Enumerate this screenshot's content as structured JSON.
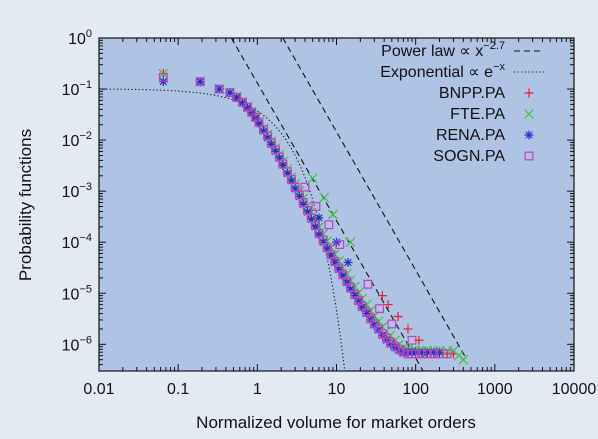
{
  "chart_data": {
    "type": "scatter",
    "title": "",
    "xlabel": "Normalized volume for market orders",
    "ylabel": "Probability functions",
    "xscale": "log",
    "yscale": "log",
    "xlim": [
      0.01,
      10000
    ],
    "ylim": [
      3e-07,
      1
    ],
    "x_ticks": [
      "0.01",
      "0.1",
      "1",
      "10",
      "100",
      "1000",
      "10000"
    ],
    "y_ticks": [
      {
        "base": "10",
        "exp": "0"
      },
      {
        "base": "10",
        "exp": "−1"
      },
      {
        "base": "10",
        "exp": "−2"
      },
      {
        "base": "10",
        "exp": "−3"
      },
      {
        "base": "10",
        "exp": "−4"
      },
      {
        "base": "10",
        "exp": "−5"
      },
      {
        "base": "10",
        "exp": "−6"
      }
    ],
    "grid": false,
    "legend_position": "top-right",
    "legend": [
      {
        "label": "Power law ∝ x",
        "sup": "−2.7",
        "style": "dashed",
        "color": "#111111"
      },
      {
        "label": "Exponential ∝ e",
        "sup": "−x",
        "style": "dotted",
        "color": "#111111"
      },
      {
        "label": "BNPP.PA",
        "marker": "plus",
        "color": "#e8202a"
      },
      {
        "label": "FTE.PA",
        "marker": "cross",
        "color": "#3cc23c"
      },
      {
        "label": "RENA.PA",
        "marker": "asterisk",
        "color": "#2030c8"
      },
      {
        "label": "SOGN.PA",
        "marker": "square",
        "color": "#c040c0"
      }
    ],
    "reference_lines": [
      {
        "name": "Power law ∝ x−2.7",
        "style": "dashed",
        "x": [
          0.47,
          150
        ],
        "y": [
          1.0,
          1.8e-07
        ]
      },
      {
        "name": "Power law ∝ x−2.7",
        "style": "dashed",
        "x": [
          2.1,
          420
        ],
        "y": [
          1.0,
          5.8e-07
        ]
      },
      {
        "name": "Exponential ∝ e−x",
        "style": "dotted",
        "x": [
          0.01,
          13
        ],
        "y": [
          0.1,
          2.3e-07
        ]
      }
    ],
    "series": [
      {
        "name": "BNPP.PA",
        "marker": "plus",
        "color": "#e8202a",
        "x": [
          0.065,
          0.19,
          0.33,
          0.45,
          0.55,
          0.65,
          0.75,
          0.85,
          0.95,
          1.05,
          1.2,
          1.35,
          1.5,
          1.7,
          1.9,
          2.1,
          2.4,
          2.7,
          3.0,
          3.4,
          3.8,
          4.3,
          4.8,
          5.4,
          6.0,
          6.8,
          7.6,
          8.5,
          9.5,
          10.7,
          12,
          13.5,
          15,
          17,
          19,
          21,
          24,
          27,
          30,
          34,
          38,
          43,
          48,
          55,
          62,
          70,
          80,
          90,
          100,
          120,
          140,
          170,
          200,
          250,
          300,
          38,
          45,
          60,
          80,
          110
        ],
        "y": [
          0.2,
          0.14,
          0.1,
          0.085,
          0.07,
          0.055,
          0.045,
          0.035,
          0.028,
          0.022,
          0.016,
          0.012,
          0.009,
          0.0065,
          0.0048,
          0.0035,
          0.0024,
          0.0017,
          0.0012,
          0.00085,
          0.0006,
          0.00042,
          0.0003,
          0.00021,
          0.00015,
          0.00011,
          8e-05,
          6e-05,
          4.5e-05,
          3.2e-05,
          2.4e-05,
          1.8e-05,
          1.3e-05,
          1e-05,
          7.8e-06,
          6e-06,
          4.6e-06,
          3.5e-06,
          2.7e-06,
          2.1e-06,
          1.7e-06,
          1.4e-06,
          1.2e-06,
          1e-06,
          8.5e-07,
          7.5e-07,
          7e-07,
          6.5e-07,
          6.5e-07,
          6.5e-07,
          6.5e-07,
          6.5e-07,
          6.5e-07,
          6.5e-07,
          6.5e-07,
          9e-06,
          6e-06,
          3.5e-06,
          2e-06,
          1.2e-06
        ]
      },
      {
        "name": "FTE.PA",
        "marker": "cross",
        "color": "#3cc23c",
        "x": [
          0.065,
          0.19,
          0.33,
          0.45,
          0.55,
          0.65,
          0.75,
          0.85,
          0.95,
          1.05,
          1.2,
          1.35,
          1.5,
          1.7,
          1.9,
          2.1,
          2.4,
          2.7,
          3.0,
          3.4,
          3.8,
          4.3,
          4.8,
          5.4,
          6.0,
          6.8,
          7.6,
          8.5,
          9.5,
          10.7,
          12,
          13.5,
          15,
          17,
          19,
          21,
          24,
          27,
          30,
          34,
          38,
          43,
          48,
          55,
          62,
          70,
          80,
          90,
          100,
          120,
          140,
          170,
          200,
          250,
          300,
          350,
          400,
          5.0,
          7.0,
          9.0,
          15
        ],
        "y": [
          0.2,
          0.14,
          0.1,
          0.085,
          0.07,
          0.056,
          0.046,
          0.036,
          0.029,
          0.023,
          0.017,
          0.013,
          0.0095,
          0.007,
          0.0052,
          0.0038,
          0.0027,
          0.0019,
          0.0014,
          0.001,
          0.00072,
          0.00052,
          0.00038,
          0.00027,
          0.0002,
          0.000145,
          0.000105,
          7.8e-05,
          5.8e-05,
          4.3e-05,
          3.2e-05,
          2.4e-05,
          1.8e-05,
          1.35e-05,
          1.02e-05,
          7.8e-06,
          6e-06,
          4.6e-06,
          3.6e-06,
          2.8e-06,
          2.2e-06,
          1.8e-06,
          1.5e-06,
          1.2e-06,
          1e-06,
          8.5e-07,
          8e-07,
          7.5e-07,
          7.5e-07,
          7.5e-07,
          7.5e-07,
          7.5e-07,
          7.5e-07,
          7.5e-07,
          7.5e-07,
          6e-07,
          5e-07,
          0.0018,
          0.00075,
          0.00035,
          0.0001
        ]
      },
      {
        "name": "RENA.PA",
        "marker": "asterisk",
        "color": "#2030c8",
        "x": [
          0.065,
          0.19,
          0.33,
          0.45,
          0.55,
          0.65,
          0.75,
          0.85,
          0.95,
          1.05,
          1.2,
          1.35,
          1.5,
          1.7,
          1.9,
          2.1,
          2.4,
          2.7,
          3.0,
          3.4,
          3.8,
          4.3,
          4.8,
          5.4,
          6.0,
          6.8,
          7.6,
          8.5,
          9.5,
          10.7,
          12,
          13.5,
          15,
          17,
          19,
          21,
          24,
          27,
          30,
          34,
          38,
          43,
          48,
          55,
          62,
          70,
          80,
          90,
          100,
          120,
          140,
          170,
          200,
          6.0,
          10,
          14
        ],
        "y": [
          0.14,
          0.14,
          0.1,
          0.085,
          0.068,
          0.054,
          0.043,
          0.034,
          0.027,
          0.021,
          0.015,
          0.011,
          0.0082,
          0.006,
          0.0044,
          0.0032,
          0.0022,
          0.0016,
          0.0011,
          0.00078,
          0.00055,
          0.00039,
          0.00028,
          0.0002,
          0.00014,
          0.0001,
          7.4e-05,
          5.4e-05,
          4e-05,
          2.9e-05,
          2.2e-05,
          1.6e-05,
          1.2e-05,
          9e-06,
          6.8e-06,
          5.2e-06,
          4e-06,
          3e-06,
          2.4e-06,
          1.9e-06,
          1.5e-06,
          1.2e-06,
          1e-06,
          8.5e-07,
          7.5e-07,
          7e-07,
          7e-07,
          7e-07,
          7e-07,
          7e-07,
          7e-07,
          7e-07,
          7e-07,
          0.0003,
          0.0001,
          4e-05
        ]
      },
      {
        "name": "SOGN.PA",
        "marker": "square",
        "color": "#c040c0",
        "x": [
          0.065,
          0.19,
          0.33,
          0.45,
          0.55,
          0.65,
          0.75,
          0.85,
          0.95,
          1.05,
          1.2,
          1.35,
          1.5,
          1.7,
          1.9,
          2.1,
          2.4,
          2.7,
          3.0,
          3.4,
          3.8,
          4.3,
          4.8,
          5.4,
          6.0,
          6.8,
          7.6,
          8.5,
          9.5,
          10.7,
          12,
          13.5,
          15,
          17,
          19,
          21,
          24,
          27,
          30,
          34,
          38,
          43,
          48,
          55,
          62,
          70,
          80,
          90,
          100,
          120,
          140,
          170,
          200,
          250,
          4.0,
          5.5,
          8.0,
          11,
          25,
          35,
          50,
          90
        ],
        "y": [
          0.17,
          0.14,
          0.1,
          0.085,
          0.069,
          0.055,
          0.044,
          0.035,
          0.028,
          0.022,
          0.016,
          0.012,
          0.0088,
          0.0064,
          0.0047,
          0.0034,
          0.0024,
          0.0017,
          0.0012,
          0.00084,
          0.0006,
          0.00042,
          0.0003,
          0.00021,
          0.00015,
          0.00011,
          7.8e-05,
          5.7e-05,
          4.2e-05,
          3.1e-05,
          2.3e-05,
          1.7e-05,
          1.3e-05,
          9.5e-06,
          7.2e-06,
          5.5e-06,
          4.2e-06,
          3.2e-06,
          2.5e-06,
          2e-06,
          1.6e-06,
          1.3e-06,
          1.1e-06,
          9e-07,
          8e-07,
          7e-07,
          6.5e-07,
          6.5e-07,
          6.5e-07,
          6.5e-07,
          6.5e-07,
          6.5e-07,
          6.5e-07,
          6.5e-07,
          0.0012,
          0.0005,
          0.00022,
          9e-05,
          1.5e-05,
          5e-06,
          2.5e-06,
          1.2e-06
        ]
      }
    ]
  }
}
